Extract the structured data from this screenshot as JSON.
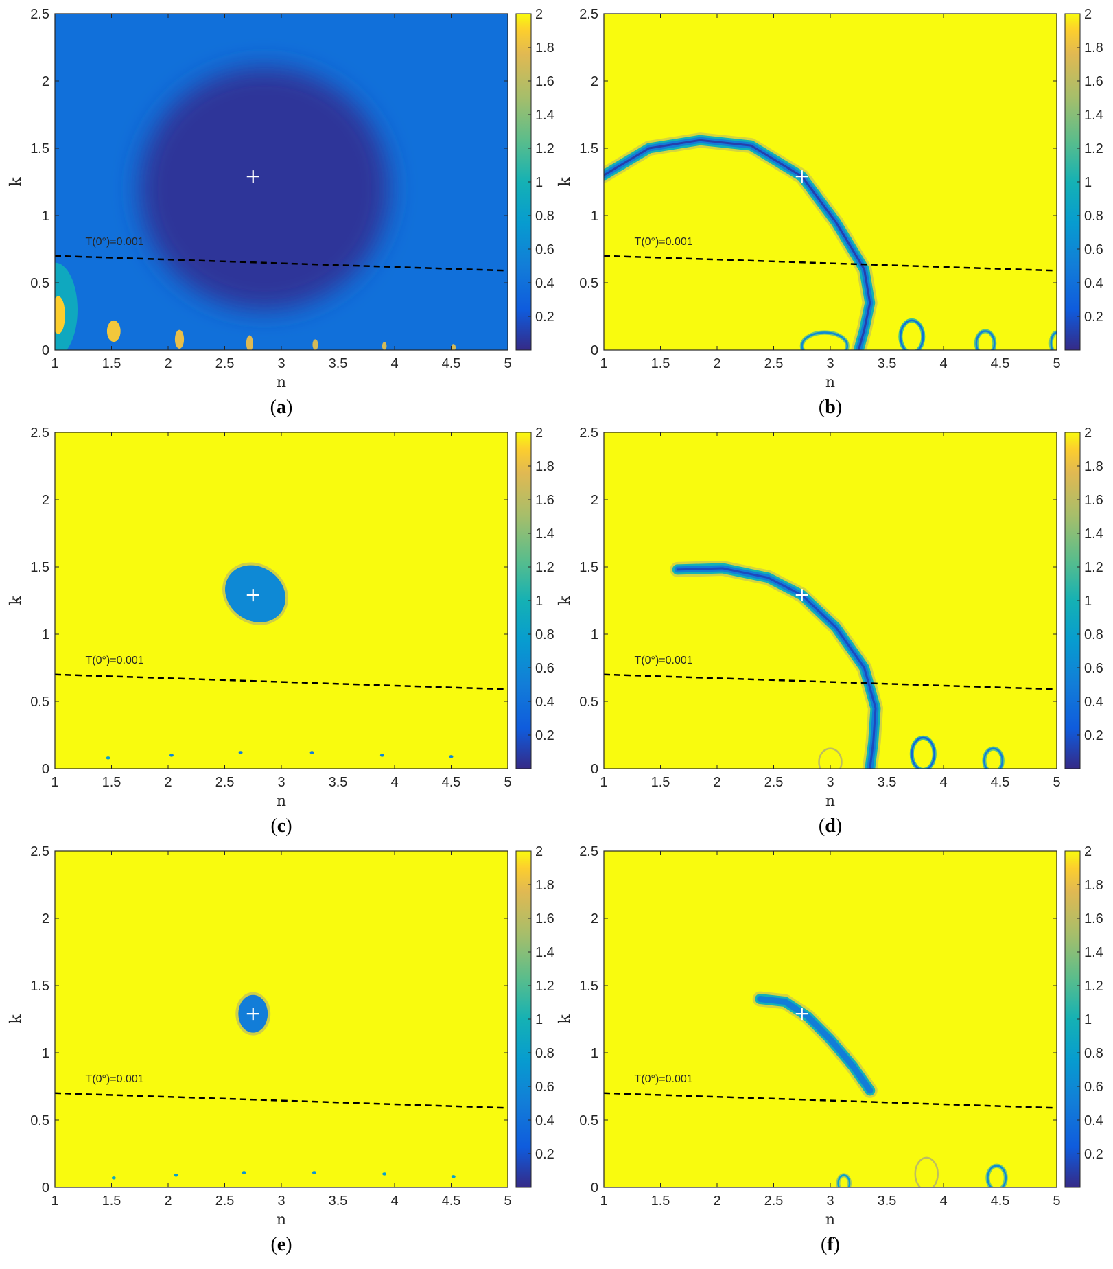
{
  "chart_data": [
    {
      "panel": "a",
      "type": "heatmap",
      "caption": {
        "open": "(",
        "letter": "a",
        "close": ")"
      },
      "xlabel": "n",
      "ylabel": "k",
      "xlim": [
        1,
        5
      ],
      "ylim": [
        0,
        2.5
      ],
      "xticks": [
        1,
        1.5,
        2,
        2.5,
        3,
        3.5,
        4,
        4.5,
        5
      ],
      "yticks": [
        0,
        0.5,
        1,
        1.5,
        2,
        2.5
      ],
      "colorbar": {
        "range": [
          0,
          2
        ],
        "ticks": [
          0.2,
          0.4,
          0.6,
          0.8,
          1,
          1.2,
          1.4,
          1.6,
          1.8,
          2
        ]
      },
      "background_value": 0.4,
      "marker": {
        "n": 2.75,
        "k": 1.29
      },
      "threshold_line": {
        "label": "T(0°)=0.001",
        "points": [
          [
            1,
            0.7
          ],
          [
            5,
            0.59
          ]
        ]
      },
      "features": [
        {
          "shape": "ellipse",
          "n": 2.85,
          "k": 1.2,
          "rn": 1.1,
          "rk": 0.9,
          "value": 0.05
        },
        {
          "shape": "ellipse",
          "n": 1.0,
          "k": 0.3,
          "rn": 0.2,
          "rk": 0.35,
          "value": 0.9
        },
        {
          "shape": "ellipse",
          "n": 1.03,
          "k": 0.26,
          "rn": 0.06,
          "rk": 0.14,
          "value": 1.9
        },
        {
          "shape": "ellipse",
          "n": 1.52,
          "k": 0.14,
          "rn": 0.06,
          "rk": 0.08,
          "value": 1.85
        },
        {
          "shape": "ellipse",
          "n": 2.1,
          "k": 0.08,
          "rn": 0.04,
          "rk": 0.07,
          "value": 1.8
        },
        {
          "shape": "ellipse",
          "n": 2.72,
          "k": 0.05,
          "rn": 0.03,
          "rk": 0.06,
          "value": 1.75
        },
        {
          "shape": "ellipse",
          "n": 3.3,
          "k": 0.04,
          "rn": 0.025,
          "rk": 0.04,
          "value": 1.7
        },
        {
          "shape": "ellipse",
          "n": 3.91,
          "k": 0.03,
          "rn": 0.02,
          "rk": 0.03,
          "value": 1.7
        },
        {
          "shape": "ellipse",
          "n": 4.52,
          "k": 0.02,
          "rn": 0.02,
          "rk": 0.025,
          "value": 1.7
        }
      ]
    },
    {
      "panel": "b",
      "type": "heatmap",
      "caption": {
        "open": "(",
        "letter": "b",
        "close": ")"
      },
      "xlabel": "n",
      "ylabel": "k",
      "xlim": [
        1,
        5
      ],
      "ylim": [
        0,
        2.5
      ],
      "xticks": [
        1,
        1.5,
        2,
        2.5,
        3,
        3.5,
        4,
        4.5,
        5
      ],
      "yticks": [
        0,
        0.5,
        1,
        1.5,
        2,
        2.5
      ],
      "colorbar": {
        "range": [
          0,
          2
        ],
        "ticks": [
          0.2,
          0.4,
          0.6,
          0.8,
          1,
          1.2,
          1.4,
          1.6,
          1.8,
          2
        ]
      },
      "background_value": 2,
      "marker": {
        "n": 2.75,
        "k": 1.29
      },
      "threshold_line": {
        "label": "T(0°)=0.001",
        "points": [
          [
            1,
            0.7
          ],
          [
            5,
            0.59
          ]
        ]
      },
      "features": [
        {
          "shape": "band",
          "points": [
            [
              1.0,
              1.3
            ],
            [
              1.4,
              1.5
            ],
            [
              1.85,
              1.56
            ],
            [
              2.3,
              1.52
            ],
            [
              2.75,
              1.29
            ],
            [
              3.05,
              0.95
            ],
            [
              3.3,
              0.6
            ],
            [
              3.35,
              0.35
            ],
            [
              3.3,
              0.15
            ],
            [
              3.25,
              0
            ]
          ],
          "value": 0.1
        },
        {
          "shape": "ring",
          "n": 3.72,
          "k": 0.1,
          "rn": 0.1,
          "rk": 0.12,
          "value": 0.4
        },
        {
          "shape": "ring",
          "n": 4.37,
          "k": 0.05,
          "rn": 0.08,
          "rk": 0.09,
          "value": 0.5
        },
        {
          "shape": "ring",
          "n": 2.95,
          "k": 0.03,
          "rn": 0.2,
          "rk": 0.1,
          "value": 0.6
        },
        {
          "shape": "ring",
          "n": 5.0,
          "k": 0.05,
          "rn": 0.05,
          "rk": 0.08,
          "value": 0.6
        }
      ]
    },
    {
      "panel": "c",
      "type": "heatmap",
      "caption": {
        "open": "(",
        "letter": "c",
        "close": ")"
      },
      "xlabel": "n",
      "ylabel": "k",
      "xlim": [
        1,
        5
      ],
      "ylim": [
        0,
        2.5
      ],
      "xticks": [
        1,
        1.5,
        2,
        2.5,
        3,
        3.5,
        4,
        4.5,
        5
      ],
      "yticks": [
        0,
        0.5,
        1,
        1.5,
        2,
        2.5
      ],
      "colorbar": {
        "range": [
          0,
          2
        ],
        "ticks": [
          0.2,
          0.4,
          0.6,
          0.8,
          1,
          1.2,
          1.4,
          1.6,
          1.8,
          2
        ]
      },
      "background_value": 2,
      "marker": {
        "n": 2.75,
        "k": 1.29
      },
      "threshold_line": {
        "label": "T(0°)=0.001",
        "points": [
          [
            1,
            0.7
          ],
          [
            5,
            0.59
          ]
        ]
      },
      "features": [
        {
          "shape": "ellipse",
          "n": 2.77,
          "k": 1.3,
          "rn": 0.28,
          "rk": 0.2,
          "angle": 35,
          "value": 0.6
        },
        {
          "shape": "dot",
          "n": 1.47,
          "k": 0.08,
          "value": 0.8
        },
        {
          "shape": "dot",
          "n": 2.03,
          "k": 0.1,
          "value": 0.6
        },
        {
          "shape": "dot",
          "n": 2.64,
          "k": 0.12,
          "value": 0.5
        },
        {
          "shape": "dot",
          "n": 3.27,
          "k": 0.12,
          "value": 0.5
        },
        {
          "shape": "dot",
          "n": 3.89,
          "k": 0.1,
          "value": 0.6
        },
        {
          "shape": "dot",
          "n": 4.5,
          "k": 0.09,
          "value": 0.6
        }
      ]
    },
    {
      "panel": "d",
      "type": "heatmap",
      "caption": {
        "open": "(",
        "letter": "d",
        "close": ")"
      },
      "xlabel": "n",
      "ylabel": "k",
      "xlim": [
        1,
        5
      ],
      "ylim": [
        0,
        2.5
      ],
      "xticks": [
        1,
        1.5,
        2,
        2.5,
        3,
        3.5,
        4,
        4.5,
        5
      ],
      "yticks": [
        0,
        0.5,
        1,
        1.5,
        2,
        2.5
      ],
      "colorbar": {
        "range": [
          0,
          2
        ],
        "ticks": [
          0.2,
          0.4,
          0.6,
          0.8,
          1,
          1.2,
          1.4,
          1.6,
          1.8,
          2
        ]
      },
      "background_value": 2,
      "marker": {
        "n": 2.75,
        "k": 1.29
      },
      "threshold_line": {
        "label": "T(0°)=0.001",
        "points": [
          [
            1,
            0.7
          ],
          [
            5,
            0.59
          ]
        ]
      },
      "features": [
        {
          "shape": "band",
          "points": [
            [
              1.65,
              1.48
            ],
            [
              2.05,
              1.49
            ],
            [
              2.45,
              1.42
            ],
            [
              2.75,
              1.29
            ],
            [
              3.05,
              1.05
            ],
            [
              3.3,
              0.75
            ],
            [
              3.4,
              0.45
            ],
            [
              3.38,
              0.2
            ],
            [
              3.35,
              0
            ]
          ],
          "value": 0.15
        },
        {
          "shape": "ring",
          "n": 3.82,
          "k": 0.11,
          "rn": 0.1,
          "rk": 0.12,
          "value": 0.3
        },
        {
          "shape": "ring",
          "n": 4.44,
          "k": 0.06,
          "rn": 0.08,
          "rk": 0.09,
          "value": 0.5
        },
        {
          "shape": "ring",
          "n": 3.0,
          "k": 0.05,
          "rn": 0.1,
          "rk": 0.1,
          "value": 1.6
        }
      ]
    },
    {
      "panel": "e",
      "type": "heatmap",
      "caption": {
        "open": "(",
        "letter": "e",
        "close": ")"
      },
      "xlabel": "n",
      "ylabel": "k",
      "xlim": [
        1,
        5
      ],
      "ylim": [
        0,
        2.5
      ],
      "xticks": [
        1,
        1.5,
        2,
        2.5,
        3,
        3.5,
        4,
        4.5,
        5
      ],
      "yticks": [
        0,
        0.5,
        1,
        1.5,
        2,
        2.5
      ],
      "colorbar": {
        "range": [
          0,
          2
        ],
        "ticks": [
          0.2,
          0.4,
          0.6,
          0.8,
          1,
          1.2,
          1.4,
          1.6,
          1.8,
          2
        ]
      },
      "background_value": 2,
      "marker": {
        "n": 2.75,
        "k": 1.29
      },
      "threshold_line": {
        "label": "T(0°)=0.001",
        "points": [
          [
            1,
            0.7
          ],
          [
            5,
            0.59
          ]
        ]
      },
      "features": [
        {
          "shape": "ellipse",
          "n": 2.75,
          "k": 1.29,
          "rn": 0.13,
          "rk": 0.14,
          "value": 0.5
        },
        {
          "shape": "dot",
          "n": 1.52,
          "k": 0.07,
          "value": 0.9
        },
        {
          "shape": "dot",
          "n": 2.07,
          "k": 0.09,
          "value": 0.8
        },
        {
          "shape": "dot",
          "n": 2.67,
          "k": 0.11,
          "value": 0.7
        },
        {
          "shape": "dot",
          "n": 3.29,
          "k": 0.11,
          "value": 0.7
        },
        {
          "shape": "dot",
          "n": 3.91,
          "k": 0.1,
          "value": 0.8
        },
        {
          "shape": "dot",
          "n": 4.52,
          "k": 0.08,
          "value": 0.8
        }
      ]
    },
    {
      "panel": "f",
      "type": "heatmap",
      "caption": {
        "open": "(",
        "letter": "f",
        "close": ")"
      },
      "xlabel": "n",
      "ylabel": "k",
      "xlim": [
        1,
        5
      ],
      "ylim": [
        0,
        2.5
      ],
      "xticks": [
        1,
        1.5,
        2,
        2.5,
        3,
        3.5,
        4,
        4.5,
        5
      ],
      "yticks": [
        0,
        0.5,
        1,
        1.5,
        2,
        2.5
      ],
      "colorbar": {
        "range": [
          0,
          2
        ],
        "ticks": [
          0.2,
          0.4,
          0.6,
          0.8,
          1,
          1.2,
          1.4,
          1.6,
          1.8,
          2
        ]
      },
      "background_value": 2,
      "marker": {
        "n": 2.75,
        "k": 1.29
      },
      "threshold_line": {
        "label": "T(0°)=0.001",
        "points": [
          [
            1,
            0.7
          ],
          [
            5,
            0.59
          ]
        ]
      },
      "features": [
        {
          "shape": "band",
          "points": [
            [
              2.38,
              1.4
            ],
            [
              2.6,
              1.38
            ],
            [
              2.8,
              1.27
            ],
            [
              3.0,
              1.1
            ],
            [
              3.2,
              0.9
            ],
            [
              3.35,
              0.72
            ]
          ],
          "value": 0.5
        },
        {
          "shape": "ring",
          "n": 3.85,
          "k": 0.1,
          "rn": 0.1,
          "rk": 0.12,
          "value": 1.6
        },
        {
          "shape": "ring",
          "n": 4.47,
          "k": 0.07,
          "rn": 0.08,
          "rk": 0.09,
          "value": 0.6
        },
        {
          "shape": "ring",
          "n": 3.12,
          "k": 0.03,
          "rn": 0.05,
          "rk": 0.06,
          "value": 0.8
        }
      ]
    }
  ]
}
